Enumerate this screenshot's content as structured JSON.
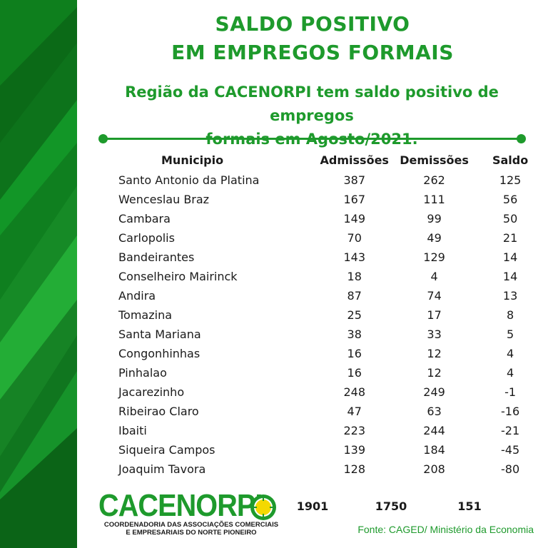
{
  "header": {
    "title_line1": "SALDO POSITIVO",
    "title_line2": "EM EMPREGOS FORMAIS",
    "subtitle_line1": "Região da CACENORPI tem saldo positivo de empregos",
    "subtitle_line2": "formais em Agosto/2021."
  },
  "table": {
    "headers": {
      "municipio": "Municipio",
      "admissoes": "Admissões",
      "demissoes": "Demissões",
      "saldo": "Saldo"
    },
    "rows": [
      {
        "municipio": "Santo Antonio da Platina",
        "admissoes": "387",
        "demissoes": "262",
        "saldo": "125"
      },
      {
        "municipio": "Wenceslau Braz",
        "admissoes": "167",
        "demissoes": "111",
        "saldo": "56"
      },
      {
        "municipio": "Cambara",
        "admissoes": "149",
        "demissoes": "99",
        "saldo": "50"
      },
      {
        "municipio": "Carlopolis",
        "admissoes": "70",
        "demissoes": "49",
        "saldo": "21"
      },
      {
        "municipio": "Bandeirantes",
        "admissoes": "143",
        "demissoes": "129",
        "saldo": "14"
      },
      {
        "municipio": "Conselheiro Mairinck",
        "admissoes": "18",
        "demissoes": "4",
        "saldo": "14"
      },
      {
        "municipio": "Andira",
        "admissoes": "87",
        "demissoes": "74",
        "saldo": "13"
      },
      {
        "municipio": "Tomazina",
        "admissoes": "25",
        "demissoes": "17",
        "saldo": "8"
      },
      {
        "municipio": "Santa Mariana",
        "admissoes": "38",
        "demissoes": "33",
        "saldo": "5"
      },
      {
        "municipio": "Congonhinhas",
        "admissoes": "16",
        "demissoes": "12",
        "saldo": "4"
      },
      {
        "municipio": "Pinhalao",
        "admissoes": "16",
        "demissoes": "12",
        "saldo": "4"
      },
      {
        "municipio": "Jacarezinho",
        "admissoes": "248",
        "demissoes": "249",
        "saldo": "-1"
      },
      {
        "municipio": "Ribeirao Claro",
        "admissoes": "47",
        "demissoes": "63",
        "saldo": "-16"
      },
      {
        "municipio": "Ibaiti",
        "admissoes": "223",
        "demissoes": "244",
        "saldo": "-21"
      },
      {
        "municipio": "Siqueira Campos",
        "admissoes": "139",
        "demissoes": "184",
        "saldo": "-45"
      },
      {
        "municipio": "Joaquim Tavora",
        "admissoes": "128",
        "demissoes": "208",
        "saldo": "-80"
      }
    ],
    "totals": {
      "admissoes": "1901",
      "demissoes": "1750",
      "saldo": "151"
    }
  },
  "logo": {
    "name": "CACENORPI",
    "subtitle_line1": "COORDENADORIA DAS ASSOCIAÇÕES COMERCIAIS",
    "subtitle_line2": "E EMPRESARIAIS DO NORTE PIONEIRO",
    "icon": "sun-icon"
  },
  "footer": {
    "source": "Fonte: CAGED/ Ministério da Economia"
  },
  "colors": {
    "brand_green": "#1e9a2c",
    "stripe_dark": "#0b5e16",
    "stripe_light": "#2fb53d"
  }
}
